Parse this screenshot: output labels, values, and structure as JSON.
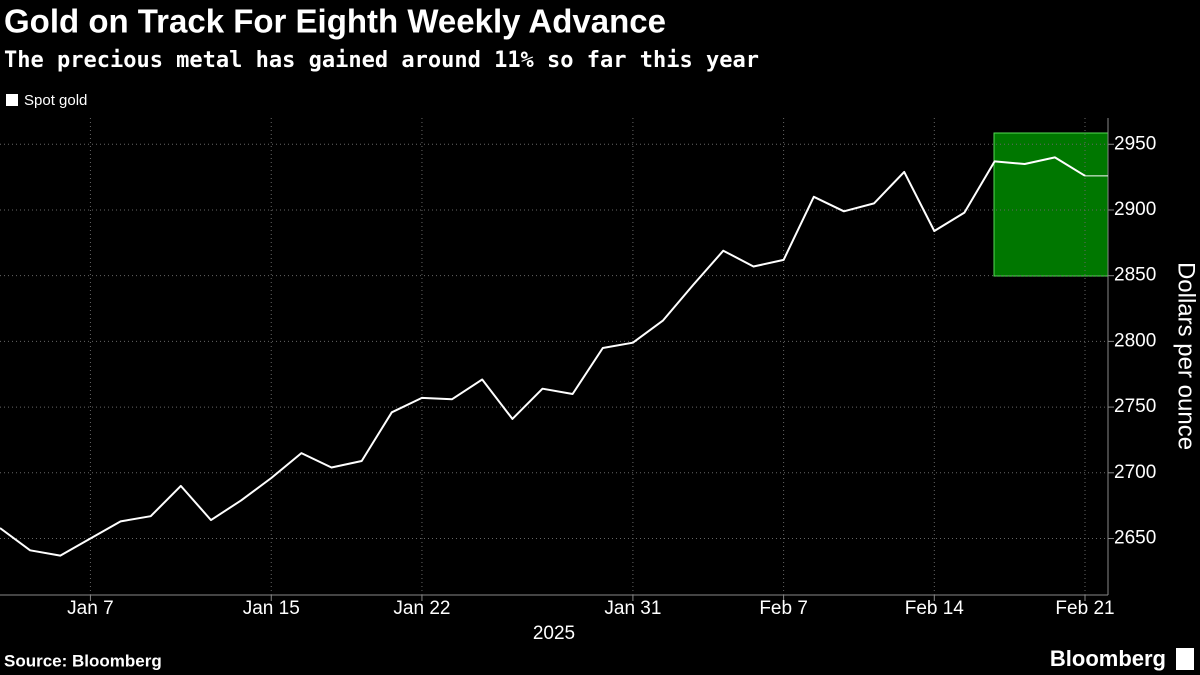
{
  "chart_data": {
    "type": "line",
    "title": "Gold on Track For Eighth Weekly Advance",
    "subtitle": "The precious metal has gained around 11% so far this year",
    "source": "Source: Bloomberg",
    "brand": "Bloomberg",
    "xlabel": "2025",
    "ylabel": "Dollars per ounce",
    "categories": [
      null,
      null,
      null,
      "Jan 7",
      null,
      null,
      null,
      null,
      null,
      "Jan 15",
      null,
      null,
      null,
      null,
      "Jan 22",
      null,
      null,
      null,
      null,
      null,
      null,
      "Jan 31",
      null,
      null,
      null,
      null,
      "Feb 7",
      null,
      null,
      null,
      null,
      "Feb 14",
      null,
      null,
      null,
      null,
      "Feb 21"
    ],
    "series": [
      {
        "name": "Spot gold",
        "color": "#ffffff",
        "values": [
          2658,
          2641,
          2637,
          2650,
          2663,
          2667,
          2690,
          2664,
          2679,
          2696,
          2715,
          2704,
          2709,
          2746,
          2757,
          2756,
          2771,
          2741,
          2764,
          2760,
          2795,
          2799,
          2816,
          2843,
          2869,
          2857,
          2862,
          2910,
          2899,
          2905,
          2929,
          2884,
          2898,
          2937,
          2935,
          2940,
          2926
        ]
      }
    ],
    "ylim": [
      2607,
      2970
    ],
    "yticks": [
      2650,
      2700,
      2750,
      2800,
      2850,
      2900,
      2950
    ],
    "grid": true
  }
}
